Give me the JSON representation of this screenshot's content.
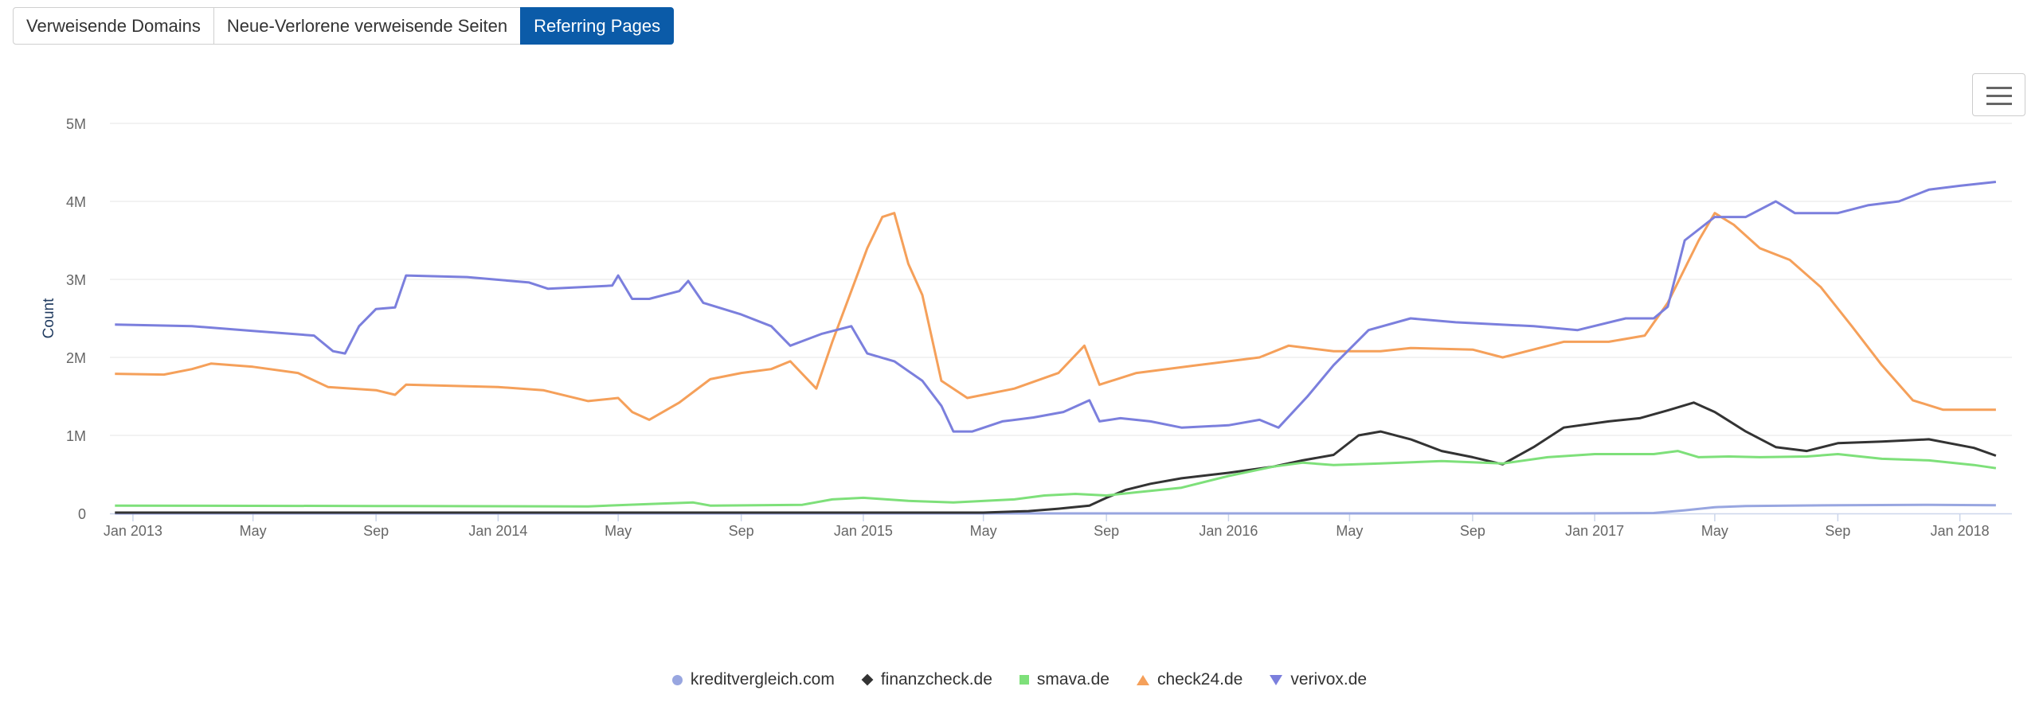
{
  "tabs": [
    {
      "label": "Verweisende Domains",
      "active": false
    },
    {
      "label": "Neue-Verlorene verweisende Seiten",
      "active": false
    },
    {
      "label": "Referring Pages",
      "active": true
    }
  ],
  "menu": {
    "icon": "hamburger-menu-icon"
  },
  "colors": {
    "active_tab": "#0b5ba8",
    "grid": "#e6e6e6",
    "axis": "#ccd6eb",
    "label": "#666666",
    "axis_title": "#1f3a5f"
  },
  "chart_data": {
    "type": "line",
    "title": "",
    "xlabel": "",
    "ylabel": "Count",
    "x_range": [
      "2012-12-09",
      "2018-02-22"
    ],
    "ylim": [
      0,
      5000000
    ],
    "y_ticks": [
      0,
      1000000,
      2000000,
      3000000,
      4000000,
      5000000
    ],
    "y_tick_labels": [
      "0",
      "1M",
      "2M",
      "3M",
      "4M",
      "5M"
    ],
    "x_ticks": [
      "2013-01-01",
      "2013-05-01",
      "2013-09-01",
      "2014-01-01",
      "2014-05-01",
      "2014-09-01",
      "2015-01-01",
      "2015-05-01",
      "2015-09-01",
      "2016-01-01",
      "2016-05-01",
      "2016-09-01",
      "2017-01-01",
      "2017-05-01",
      "2017-09-01",
      "2018-01-01"
    ],
    "x_tick_labels": [
      "Jan 2013",
      "May",
      "Sep",
      "Jan 2014",
      "May",
      "Sep",
      "Jan 2015",
      "May",
      "Sep",
      "Jan 2016",
      "May",
      "Sep",
      "Jan 2017",
      "May",
      "Sep",
      "Jan 2018"
    ],
    "grid": true,
    "legend_position": "bottom-center",
    "series": [
      {
        "name": "kreditvergleich.com",
        "color": "#98a6e0",
        "marker": "circle",
        "points": [
          [
            "2012-12-14",
            0
          ],
          [
            "2016-12-01",
            0
          ],
          [
            "2017-03-01",
            5000
          ],
          [
            "2017-04-01",
            40000
          ],
          [
            "2017-05-01",
            80000
          ],
          [
            "2017-06-01",
            95000
          ],
          [
            "2017-09-01",
            105000
          ],
          [
            "2017-12-01",
            110000
          ],
          [
            "2018-02-06",
            105000
          ]
        ]
      },
      {
        "name": "finanzcheck.de",
        "color": "#333333",
        "marker": "diamond",
        "points": [
          [
            "2012-12-14",
            10000
          ],
          [
            "2015-05-01",
            10000
          ],
          [
            "2015-06-15",
            30000
          ],
          [
            "2015-07-15",
            60000
          ],
          [
            "2015-08-15",
            100000
          ],
          [
            "2015-09-01",
            200000
          ],
          [
            "2015-09-20",
            300000
          ],
          [
            "2015-10-15",
            380000
          ],
          [
            "2015-11-15",
            450000
          ],
          [
            "2016-01-01",
            520000
          ],
          [
            "2016-02-15",
            600000
          ],
          [
            "2016-03-15",
            680000
          ],
          [
            "2016-04-15",
            750000
          ],
          [
            "2016-05-10",
            1000000
          ],
          [
            "2016-06-01",
            1050000
          ],
          [
            "2016-07-01",
            950000
          ],
          [
            "2016-08-01",
            800000
          ],
          [
            "2016-09-01",
            720000
          ],
          [
            "2016-10-01",
            630000
          ],
          [
            "2016-11-01",
            850000
          ],
          [
            "2016-12-01",
            1100000
          ],
          [
            "2017-01-15",
            1180000
          ],
          [
            "2017-02-15",
            1220000
          ],
          [
            "2017-03-15",
            1320000
          ],
          [
            "2017-04-10",
            1420000
          ],
          [
            "2017-05-01",
            1300000
          ],
          [
            "2017-06-01",
            1050000
          ],
          [
            "2017-07-01",
            850000
          ],
          [
            "2017-08-01",
            800000
          ],
          [
            "2017-09-01",
            900000
          ],
          [
            "2017-10-15",
            920000
          ],
          [
            "2017-12-01",
            950000
          ],
          [
            "2018-01-15",
            840000
          ],
          [
            "2018-02-06",
            740000
          ]
        ]
      },
      {
        "name": "smava.de",
        "color": "#7ee07a",
        "marker": "square",
        "points": [
          [
            "2012-12-14",
            100000
          ],
          [
            "2013-09-01",
            95000
          ],
          [
            "2014-04-01",
            90000
          ],
          [
            "2014-06-01",
            120000
          ],
          [
            "2014-07-15",
            140000
          ],
          [
            "2014-08-01",
            100000
          ],
          [
            "2014-11-01",
            110000
          ],
          [
            "2014-12-01",
            180000
          ],
          [
            "2015-01-01",
            200000
          ],
          [
            "2015-02-15",
            160000
          ],
          [
            "2015-04-01",
            140000
          ],
          [
            "2015-06-01",
            180000
          ],
          [
            "2015-07-01",
            230000
          ],
          [
            "2015-08-01",
            250000
          ],
          [
            "2015-09-01",
            230000
          ],
          [
            "2015-10-01",
            270000
          ],
          [
            "2015-11-15",
            330000
          ],
          [
            "2016-01-01",
            480000
          ],
          [
            "2016-02-15",
            600000
          ],
          [
            "2016-03-15",
            650000
          ],
          [
            "2016-04-15",
            620000
          ],
          [
            "2016-06-01",
            640000
          ],
          [
            "2016-08-01",
            670000
          ],
          [
            "2016-10-01",
            640000
          ],
          [
            "2016-11-15",
            720000
          ],
          [
            "2017-01-01",
            760000
          ],
          [
            "2017-03-01",
            760000
          ],
          [
            "2017-03-25",
            800000
          ],
          [
            "2017-04-15",
            720000
          ],
          [
            "2017-05-15",
            730000
          ],
          [
            "2017-06-15",
            720000
          ],
          [
            "2017-08-01",
            730000
          ],
          [
            "2017-09-01",
            760000
          ],
          [
            "2017-10-15",
            700000
          ],
          [
            "2017-12-01",
            680000
          ],
          [
            "2018-01-15",
            620000
          ],
          [
            "2018-02-06",
            580000
          ]
        ]
      },
      {
        "name": "check24.de",
        "color": "#f5a05a",
        "marker": "triangle",
        "points": [
          [
            "2012-12-14",
            1790000
          ],
          [
            "2013-02-01",
            1780000
          ],
          [
            "2013-03-01",
            1850000
          ],
          [
            "2013-03-20",
            1920000
          ],
          [
            "2013-05-01",
            1880000
          ],
          [
            "2013-06-15",
            1800000
          ],
          [
            "2013-07-15",
            1620000
          ],
          [
            "2013-09-01",
            1580000
          ],
          [
            "2013-09-20",
            1520000
          ],
          [
            "2013-10-01",
            1650000
          ],
          [
            "2014-01-01",
            1620000
          ],
          [
            "2014-02-15",
            1580000
          ],
          [
            "2014-04-01",
            1440000
          ],
          [
            "2014-05-01",
            1480000
          ],
          [
            "2014-05-15",
            1300000
          ],
          [
            "2014-06-01",
            1200000
          ],
          [
            "2014-07-01",
            1420000
          ],
          [
            "2014-08-01",
            1720000
          ],
          [
            "2014-09-01",
            1800000
          ],
          [
            "2014-10-01",
            1850000
          ],
          [
            "2014-10-20",
            1950000
          ],
          [
            "2014-11-15",
            1600000
          ],
          [
            "2014-12-01",
            2200000
          ],
          [
            "2014-12-20",
            2850000
          ],
          [
            "2015-01-05",
            3400000
          ],
          [
            "2015-01-20",
            3800000
          ],
          [
            "2015-02-01",
            3850000
          ],
          [
            "2015-02-15",
            3200000
          ],
          [
            "2015-03-01",
            2800000
          ],
          [
            "2015-03-20",
            1700000
          ],
          [
            "2015-04-15",
            1480000
          ],
          [
            "2015-06-01",
            1600000
          ],
          [
            "2015-07-15",
            1800000
          ],
          [
            "2015-08-10",
            2150000
          ],
          [
            "2015-08-25",
            1650000
          ],
          [
            "2015-10-01",
            1800000
          ],
          [
            "2015-12-01",
            1900000
          ],
          [
            "2016-02-01",
            2000000
          ],
          [
            "2016-03-01",
            2150000
          ],
          [
            "2016-04-15",
            2080000
          ],
          [
            "2016-06-01",
            2080000
          ],
          [
            "2016-07-01",
            2120000
          ],
          [
            "2016-09-01",
            2100000
          ],
          [
            "2016-10-01",
            2000000
          ],
          [
            "2016-12-01",
            2200000
          ],
          [
            "2017-01-15",
            2200000
          ],
          [
            "2017-02-20",
            2280000
          ],
          [
            "2017-03-15",
            2700000
          ],
          [
            "2017-04-15",
            3500000
          ],
          [
            "2017-05-01",
            3850000
          ],
          [
            "2017-05-20",
            3700000
          ],
          [
            "2017-06-15",
            3400000
          ],
          [
            "2017-07-15",
            3250000
          ],
          [
            "2017-08-15",
            2900000
          ],
          [
            "2017-09-15",
            2400000
          ],
          [
            "2017-10-15",
            1900000
          ],
          [
            "2017-11-15",
            1450000
          ],
          [
            "2017-12-15",
            1330000
          ],
          [
            "2018-02-06",
            1330000
          ]
        ]
      },
      {
        "name": "verivox.de",
        "color": "#7b7fdd",
        "marker": "triangle-down",
        "points": [
          [
            "2012-12-14",
            2420000
          ],
          [
            "2013-03-01",
            2400000
          ],
          [
            "2013-05-01",
            2340000
          ],
          [
            "2013-07-01",
            2280000
          ],
          [
            "2013-07-20",
            2080000
          ],
          [
            "2013-08-01",
            2050000
          ],
          [
            "2013-08-15",
            2400000
          ],
          [
            "2013-09-01",
            2620000
          ],
          [
            "2013-09-20",
            2640000
          ],
          [
            "2013-10-01",
            3050000
          ],
          [
            "2013-12-01",
            3030000
          ],
          [
            "2014-02-01",
            2960000
          ],
          [
            "2014-02-20",
            2880000
          ],
          [
            "2014-04-25",
            2920000
          ],
          [
            "2014-05-01",
            3050000
          ],
          [
            "2014-05-15",
            2750000
          ],
          [
            "2014-06-01",
            2750000
          ],
          [
            "2014-07-01",
            2850000
          ],
          [
            "2014-07-10",
            2980000
          ],
          [
            "2014-07-25",
            2700000
          ],
          [
            "2014-09-01",
            2550000
          ],
          [
            "2014-10-01",
            2400000
          ],
          [
            "2014-10-20",
            2150000
          ],
          [
            "2014-11-20",
            2300000
          ],
          [
            "2014-12-20",
            2400000
          ],
          [
            "2015-01-05",
            2050000
          ],
          [
            "2015-02-01",
            1950000
          ],
          [
            "2015-03-01",
            1700000
          ],
          [
            "2015-03-20",
            1380000
          ],
          [
            "2015-04-01",
            1050000
          ],
          [
            "2015-04-20",
            1050000
          ],
          [
            "2015-05-20",
            1180000
          ],
          [
            "2015-06-20",
            1230000
          ],
          [
            "2015-07-20",
            1300000
          ],
          [
            "2015-08-15",
            1450000
          ],
          [
            "2015-08-25",
            1180000
          ],
          [
            "2015-09-15",
            1220000
          ],
          [
            "2015-10-15",
            1180000
          ],
          [
            "2015-11-15",
            1100000
          ],
          [
            "2016-01-01",
            1130000
          ],
          [
            "2016-02-01",
            1200000
          ],
          [
            "2016-02-20",
            1100000
          ],
          [
            "2016-03-20",
            1500000
          ],
          [
            "2016-04-15",
            1900000
          ],
          [
            "2016-05-20",
            2350000
          ],
          [
            "2016-07-01",
            2500000
          ],
          [
            "2016-08-15",
            2450000
          ],
          [
            "2016-11-01",
            2400000
          ],
          [
            "2016-12-15",
            2350000
          ],
          [
            "2017-02-01",
            2500000
          ],
          [
            "2017-03-01",
            2500000
          ],
          [
            "2017-03-15",
            2650000
          ],
          [
            "2017-04-01",
            3500000
          ],
          [
            "2017-05-01",
            3800000
          ],
          [
            "2017-06-01",
            3800000
          ],
          [
            "2017-07-01",
            4000000
          ],
          [
            "2017-07-20",
            3850000
          ],
          [
            "2017-09-01",
            3850000
          ],
          [
            "2017-10-01",
            3950000
          ],
          [
            "2017-11-01",
            4000000
          ],
          [
            "2017-12-01",
            4150000
          ],
          [
            "2018-01-01",
            4200000
          ],
          [
            "2018-02-06",
            4250000
          ]
        ]
      }
    ]
  }
}
